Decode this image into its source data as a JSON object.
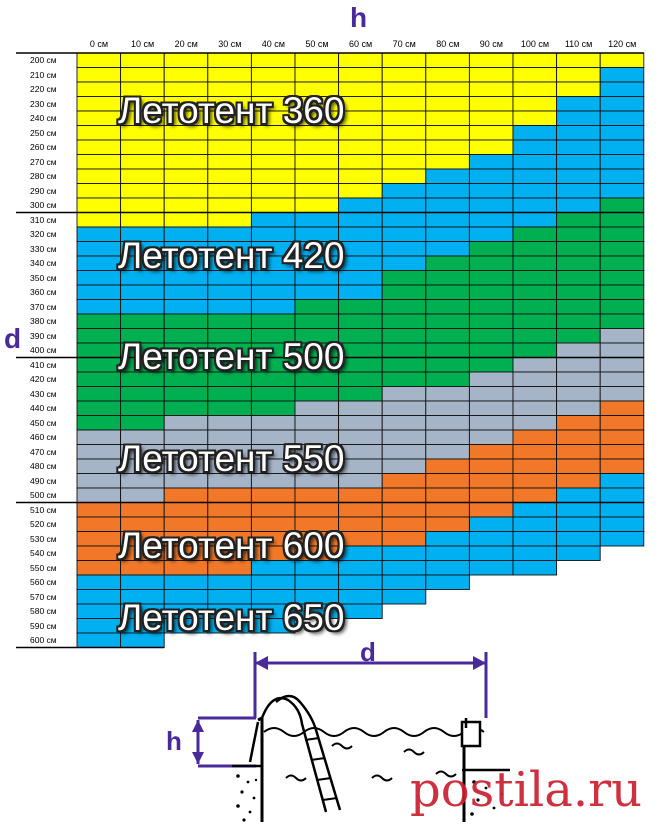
{
  "axis": {
    "h": "h",
    "d": "d"
  },
  "columns": [
    "0 см",
    "10 см",
    "20 см",
    "30 см",
    "40 см",
    "50 см",
    "60 см",
    "70 см",
    "80 см",
    "90 см",
    "100 см",
    "110 см",
    "120 см"
  ],
  "rows": [
    "200 см",
    "210 см",
    "220 см",
    "230 см",
    "240 см",
    "250 см",
    "260 см",
    "270 см",
    "280 см",
    "290 см",
    "300 см",
    "310 см",
    "320 см",
    "330 см",
    "340 см",
    "350 см",
    "360 см",
    "370 см",
    "380 см",
    "390 см",
    "400 см",
    "410 см",
    "420 см",
    "430 см",
    "440 см",
    "450 см",
    "460 см",
    "470 см",
    "480 см",
    "490 см",
    "500 см",
    "510 см",
    "520 см",
    "530 см",
    "540 см",
    "550 см",
    "560 см",
    "570 см",
    "580 см",
    "590 см",
    "600 см"
  ],
  "colors": {
    "Y": "#ffff00",
    "B": "#00b0f0",
    "G": "#00b050",
    "S": "#a6b4c8",
    "O": "#f07828",
    "W": "#ffffff"
  },
  "grid": [
    "YYYYYYYYYYYYY",
    "YYYYYYYYYYYYB",
    "YYYYYYYYYYYYB",
    "YYYYYYYYYYYBB",
    "YYYYYYYYYYYBB",
    "YYYYYYYYYYBBB",
    "YYYYYYYYYYBBB",
    "YYYYYYYYYBBBB",
    "YYYYYYYYBBBBB",
    "YYYYYYYBBBBBB",
    "YYYYYYBBBBBBG",
    "YYYYBBBBBBBGG",
    "BBBBBBBBBBGGG",
    "BBBBBBBBBGGGG",
    "BBBBBBBBGGGGG",
    "BBBBBBBGGGGGG",
    "BBBBBBBGGGGGG",
    "BBBBBGGGGGGGG",
    "GGGGGGGGGGGGG",
    "GGGGGGGGGGGGS",
    "GGGGGGGGGGGSS",
    "GGGGGGGGGGSSS",
    "GGGGGGGGGSSSS",
    "GGGGGGGSSSSSS",
    "GGGGGSSSSSSSO",
    "GGSSSSSSSSSOO",
    "SSSSSSSSSSOOO",
    "SSSSSSSSSOOOO",
    "SSSSSSSSOOOOO",
    "SSSSSSSOOOOOB",
    "SSOOOOOOOOOBB",
    "OOOOOOOOOOBBB",
    "OOOOOOOOOBBBB",
    "OOOOOOOOBBBBB",
    "OOOOOOBBBBBBW",
    "OOOOBBBBBBBWW",
    "BBBBBBBBBWWWW",
    "BBBBBBBBWWWWW",
    "BBBBBBBWWWWWW",
    "BBBBBWWWWWWWW",
    "BBWWWWWWWWWWW"
  ],
  "zones": [
    {
      "label": "Летотент 360",
      "row": 3
    },
    {
      "label": "Летотент 420",
      "row": 13
    },
    {
      "label": "Летотент 500",
      "row": 20
    },
    {
      "label": "Летотент 550",
      "row": 27
    },
    {
      "label": "Летотент 600",
      "row": 33
    },
    {
      "label": "Летотент 650",
      "row": 38
    }
  ],
  "watermark": "postila.ru"
}
